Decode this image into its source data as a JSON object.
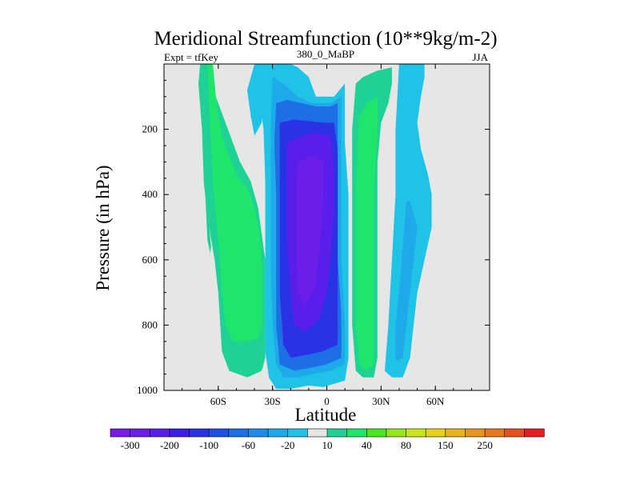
{
  "chart_data": {
    "type": "heatmap",
    "title": "Meridional Streamfunction (10**9kg/m-2)",
    "subtitle_left": "Expt = tfKey",
    "subtitle_center": "380_0_MaBP",
    "subtitle_right": "JJA",
    "xlabel": "Latitude",
    "ylabel": "Pressure (in hPa)",
    "x_range": [
      -90,
      90
    ],
    "y_range": [
      1000,
      0
    ],
    "x_ticks": [
      {
        "value": -60,
        "label": "60S"
      },
      {
        "value": -30,
        "label": "30S"
      },
      {
        "value": 0,
        "label": "0"
      },
      {
        "value": 30,
        "label": "30N"
      },
      {
        "value": 60,
        "label": "60N"
      }
    ],
    "y_ticks": [
      {
        "value": 200,
        "label": "200"
      },
      {
        "value": 400,
        "label": "400"
      },
      {
        "value": 600,
        "label": "600"
      },
      {
        "value": 800,
        "label": "800"
      },
      {
        "value": 1000,
        "label": "1000"
      }
    ],
    "background_color": "#e6e6e6",
    "colorbar": {
      "colors": [
        "#7a1ae6",
        "#6a1ee6",
        "#5a1eea",
        "#3a1ee8",
        "#2a32e6",
        "#1e50e6",
        "#1e6ee6",
        "#1e8cea",
        "#1eaaea",
        "#1ec3e6",
        "#e6e6e6",
        "#1ed296",
        "#1ee66a",
        "#4ae61e",
        "#96e61e",
        "#c8e61e",
        "#e6d21e",
        "#e6b41e",
        "#e6961e",
        "#e6781e",
        "#e6501e",
        "#e61e1e"
      ],
      "labels": [
        "-300",
        "-200",
        "-100",
        "-60",
        "-20",
        "10",
        "40",
        "80",
        "150",
        "250"
      ],
      "label_after_box": [
        0,
        2,
        4,
        6,
        8,
        10,
        12,
        14,
        16,
        18
      ]
    },
    "regions": [
      {
        "name": "sh-cell-outer-left",
        "value": 10,
        "color_index": 11,
        "points": [
          [
            -70,
            0
          ],
          [
            -66,
            0
          ],
          [
            -64,
            60
          ],
          [
            -60,
            120
          ],
          [
            -56,
            180
          ],
          [
            -52,
            240
          ],
          [
            -48,
            300
          ],
          [
            -42,
            360
          ],
          [
            -38,
            440
          ],
          [
            -36,
            520
          ],
          [
            -34,
            600
          ],
          [
            -34,
            700
          ],
          [
            -34,
            800
          ],
          [
            -34,
            900
          ],
          [
            -36,
            940
          ],
          [
            -44,
            960
          ],
          [
            -54,
            940
          ],
          [
            -58,
            880
          ],
          [
            -60,
            700
          ],
          [
            -62,
            600
          ],
          [
            -66,
            470
          ],
          [
            -68,
            360
          ],
          [
            -69,
            200
          ],
          [
            -71,
            60
          ]
        ]
      },
      {
        "name": "sh-cell-green",
        "value": 40,
        "color_index": 12,
        "points": [
          [
            -66,
            0
          ],
          [
            -63,
            0
          ],
          [
            -61,
            120
          ],
          [
            -58,
            220
          ],
          [
            -54,
            280
          ],
          [
            -50,
            340
          ],
          [
            -44,
            380
          ],
          [
            -40,
            440
          ],
          [
            -37,
            520
          ],
          [
            -36,
            620
          ],
          [
            -36,
            720
          ],
          [
            -36,
            800
          ],
          [
            -38,
            840
          ],
          [
            -44,
            850
          ],
          [
            -52,
            850
          ],
          [
            -56,
            800
          ],
          [
            -58,
            700
          ],
          [
            -59,
            600
          ],
          [
            -61,
            480
          ],
          [
            -63,
            360
          ],
          [
            -64,
            240
          ],
          [
            -65,
            120
          ]
        ]
      },
      {
        "name": "sh-thin-strip",
        "value": 10,
        "color_index": 11,
        "points": [
          [
            -69,
            140
          ],
          [
            -67,
            200
          ],
          [
            -66,
            360
          ],
          [
            -65,
            500
          ],
          [
            -64,
            560
          ],
          [
            -64.5,
            580
          ],
          [
            -66,
            540
          ],
          [
            -67,
            420
          ],
          [
            -68,
            300
          ]
        ]
      },
      {
        "name": "main-cell-edge",
        "value": -20,
        "color_index": 9,
        "points": [
          [
            -40,
            0
          ],
          [
            -20,
            0
          ],
          [
            -16,
            10
          ],
          [
            -10,
            40
          ],
          [
            -6,
            100
          ],
          [
            0,
            100
          ],
          [
            4,
            100
          ],
          [
            10,
            60
          ],
          [
            10,
            160
          ],
          [
            10,
            240
          ],
          [
            12,
            400
          ],
          [
            12,
            600
          ],
          [
            12,
            800
          ],
          [
            12,
            900
          ],
          [
            10,
            970
          ],
          [
            4,
            980
          ],
          [
            -2,
            990
          ],
          [
            -10,
            985
          ],
          [
            -20,
            995
          ],
          [
            -28,
            995
          ],
          [
            -32,
            960
          ],
          [
            -34,
            880
          ],
          [
            -34,
            700
          ],
          [
            -34,
            520
          ],
          [
            -34,
            360
          ],
          [
            -35,
            200
          ],
          [
            -38,
            60
          ]
        ]
      },
      {
        "name": "main-cell-minus60",
        "value": -60,
        "color_index": 8,
        "points": [
          [
            -30,
            40
          ],
          [
            -24,
            60
          ],
          [
            -16,
            100
          ],
          [
            -8,
            120
          ],
          [
            2,
            120
          ],
          [
            8,
            100
          ],
          [
            8,
            200
          ],
          [
            8,
            400
          ],
          [
            8,
            600
          ],
          [
            10,
            800
          ],
          [
            10,
            920
          ],
          [
            2,
            940
          ],
          [
            -8,
            950
          ],
          [
            -16,
            960
          ],
          [
            -24,
            960
          ],
          [
            -28,
            920
          ],
          [
            -30,
            800
          ],
          [
            -31,
            600
          ],
          [
            -31,
            400
          ],
          [
            -31,
            200
          ]
        ]
      },
      {
        "name": "main-cell-minus100",
        "value": -100,
        "color_index": 6,
        "points": [
          [
            -28,
            120
          ],
          [
            -22,
            110
          ],
          [
            -14,
            120
          ],
          [
            -6,
            130
          ],
          [
            2,
            130
          ],
          [
            6,
            120
          ],
          [
            6,
            240
          ],
          [
            6,
            400
          ],
          [
            6,
            600
          ],
          [
            8,
            760
          ],
          [
            8,
            900
          ],
          [
            0,
            920
          ],
          [
            -8,
            930
          ],
          [
            -18,
            940
          ],
          [
            -26,
            920
          ],
          [
            -28,
            800
          ],
          [
            -28,
            600
          ],
          [
            -28,
            400
          ],
          [
            -29,
            240
          ]
        ]
      },
      {
        "name": "main-cell-minus200",
        "value": -200,
        "color_index": 4,
        "points": [
          [
            -26,
            180
          ],
          [
            -18,
            170
          ],
          [
            -10,
            175
          ],
          [
            -2,
            180
          ],
          [
            4,
            180
          ],
          [
            6,
            260
          ],
          [
            6,
            400
          ],
          [
            6,
            560
          ],
          [
            6,
            700
          ],
          [
            6,
            860
          ],
          [
            -2,
            880
          ],
          [
            -10,
            890
          ],
          [
            -20,
            900
          ],
          [
            -24,
            860
          ],
          [
            -26,
            700
          ],
          [
            -26,
            500
          ],
          [
            -26,
            320
          ]
        ]
      },
      {
        "name": "main-cell-minus300",
        "value": -300,
        "color_index": 2,
        "points": [
          [
            -22,
            240
          ],
          [
            -14,
            220
          ],
          [
            -6,
            210
          ],
          [
            2,
            220
          ],
          [
            4,
            320
          ],
          [
            4,
            460
          ],
          [
            2,
            600
          ],
          [
            0,
            700
          ],
          [
            -4,
            780
          ],
          [
            -12,
            820
          ],
          [
            -18,
            800
          ],
          [
            -20,
            700
          ],
          [
            -22,
            540
          ],
          [
            -22,
            380
          ]
        ]
      },
      {
        "name": "main-cell-core",
        "value": -300,
        "color_index": 1,
        "points": [
          [
            -16,
            300
          ],
          [
            -8,
            280
          ],
          [
            -2,
            300
          ],
          [
            -2,
            420
          ],
          [
            -4,
            560
          ],
          [
            -6,
            680
          ],
          [
            -12,
            740
          ],
          [
            -16,
            700
          ],
          [
            -17,
            560
          ],
          [
            -17,
            420
          ]
        ]
      },
      {
        "name": "nh-cell-edge",
        "value": 10,
        "color_index": 11,
        "points": [
          [
            16,
            60
          ],
          [
            20,
            40
          ],
          [
            28,
            20
          ],
          [
            36,
            10
          ],
          [
            36,
            60
          ],
          [
            34,
            120
          ],
          [
            30,
            180
          ],
          [
            28,
            300
          ],
          [
            28,
            500
          ],
          [
            28,
            700
          ],
          [
            28,
            900
          ],
          [
            26,
            960
          ],
          [
            20,
            960
          ],
          [
            16,
            940
          ],
          [
            14,
            800
          ],
          [
            14,
            600
          ],
          [
            14,
            400
          ],
          [
            14,
            200
          ]
        ]
      },
      {
        "name": "nh-cell-green",
        "value": 40,
        "color_index": 12,
        "points": [
          [
            18,
            160
          ],
          [
            22,
            120
          ],
          [
            28,
            100
          ],
          [
            28,
            200
          ],
          [
            26,
            400
          ],
          [
            26,
            600
          ],
          [
            26,
            800
          ],
          [
            26,
            920
          ],
          [
            22,
            940
          ],
          [
            18,
            920
          ],
          [
            16,
            800
          ],
          [
            16,
            600
          ],
          [
            16,
            400
          ],
          [
            17,
            240
          ]
        ]
      },
      {
        "name": "nh-ferrel-outer",
        "value": -20,
        "color_index": 9,
        "points": [
          [
            40,
            0
          ],
          [
            54,
            0
          ],
          [
            54,
            40
          ],
          [
            52,
            100
          ],
          [
            50,
            180
          ],
          [
            52,
            260
          ],
          [
            56,
            340
          ],
          [
            58,
            400
          ],
          [
            58,
            500
          ],
          [
            54,
            600
          ],
          [
            50,
            700
          ],
          [
            48,
            800
          ],
          [
            46,
            900
          ],
          [
            42,
            960
          ],
          [
            36,
            960
          ],
          [
            32,
            940
          ],
          [
            34,
            800
          ],
          [
            36,
            600
          ],
          [
            38,
            400
          ],
          [
            38,
            200
          ]
        ]
      },
      {
        "name": "nh-ferrel-inner",
        "value": -60,
        "color_index": 8,
        "points": [
          [
            44,
            420
          ],
          [
            46,
            420
          ],
          [
            50,
            500
          ],
          [
            48,
            600
          ],
          [
            46,
            700
          ],
          [
            44,
            800
          ],
          [
            42,
            900
          ],
          [
            38,
            910
          ],
          [
            38,
            800
          ],
          [
            40,
            700
          ],
          [
            42,
            560
          ]
        ]
      },
      {
        "name": "sh-ferrel-cyan",
        "value": -20,
        "color_index": 9,
        "points": [
          [
            -40,
            0
          ],
          [
            -34,
            0
          ],
          [
            -34,
            100
          ],
          [
            -36,
            180
          ],
          [
            -40,
            220
          ],
          [
            -42,
            160
          ],
          [
            -44,
            80
          ]
        ]
      }
    ]
  }
}
